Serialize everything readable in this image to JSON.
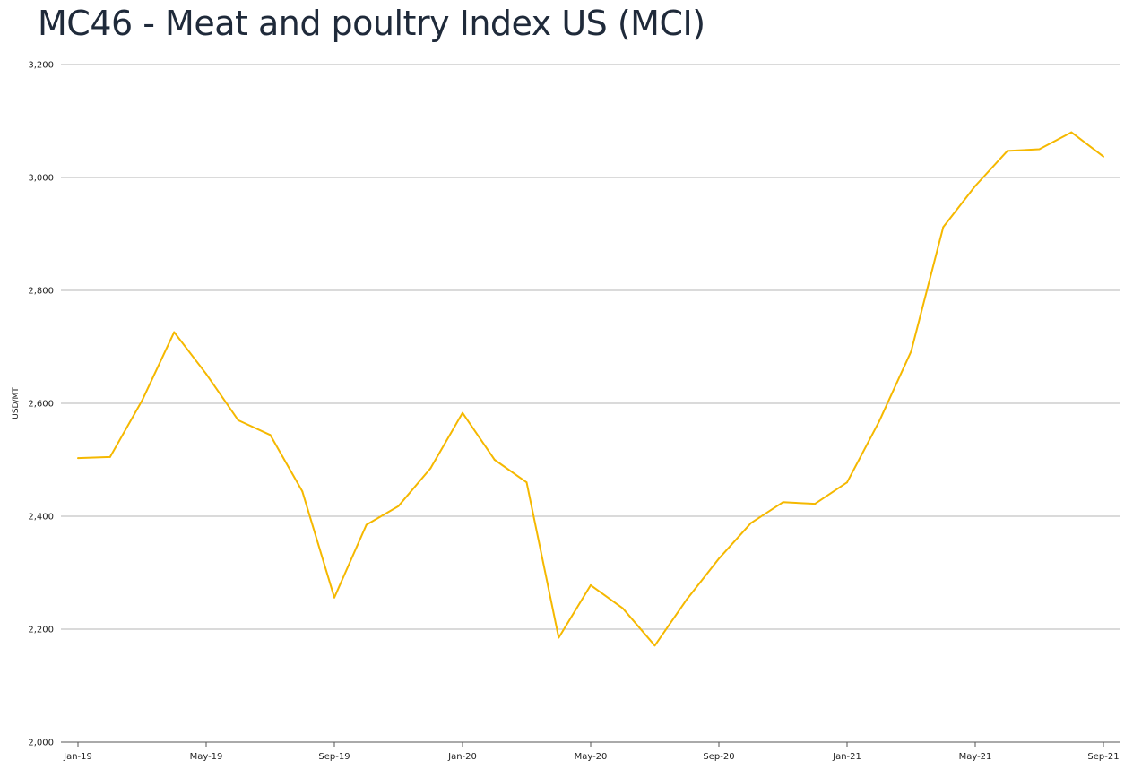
{
  "chart_data": {
    "type": "line",
    "title": "MC46 - Meat and poultry Index US (MCI)",
    "ylabel": "USD/MT",
    "xlabel": "",
    "ylim": [
      2000,
      3200
    ],
    "yticks": [
      2000,
      2200,
      2400,
      2600,
      2800,
      3000,
      3200
    ],
    "ytick_labels": [
      "2,000",
      "2,200",
      "2,400",
      "2,600",
      "2,800",
      "3,000",
      "3,200"
    ],
    "xtick_labels": [
      "Jan-19",
      "May-19",
      "Sep-19",
      "Jan-20",
      "May-20",
      "Sep-20",
      "Jan-21",
      "May-21",
      "Sep-21"
    ],
    "xtick_indices": [
      0,
      4,
      8,
      12,
      16,
      20,
      24,
      28,
      32
    ],
    "grid": true,
    "color": "#f5b800",
    "series": [
      {
        "values": [
          2503,
          2505,
          2605,
          2726,
          2652,
          2570,
          2544,
          2444,
          2256,
          2385,
          2418,
          2485,
          2583,
          2500,
          2460,
          2185,
          2278,
          2237,
          2171,
          2253,
          2325,
          2388,
          2425,
          2422,
          2460,
          2568,
          2692,
          2912,
          2985,
          3047,
          3050,
          3080,
          3037
        ]
      }
    ]
  }
}
